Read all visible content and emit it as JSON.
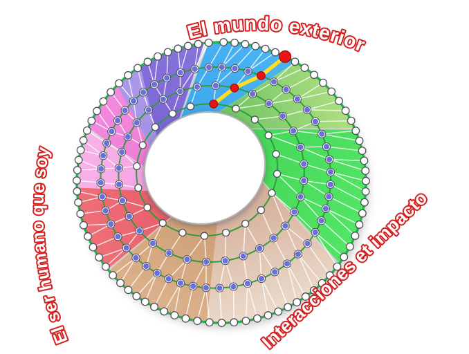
{
  "diagram": {
    "labels": {
      "top": "El mundo exterior",
      "left": "El ser humano que soy",
      "right": "Interacciones et impacto"
    },
    "label_outline_color": "#d32020",
    "label_fill_color": "#ffffff",
    "sectors": [
      {
        "name": "blue",
        "from": 355,
        "to": 391,
        "color": "#49b2f2",
        "color_inner": "#3ea9ee"
      },
      {
        "name": "green-yellow",
        "from": 31,
        "to": 68,
        "color": "#aadc80",
        "color_inner": "#74c666"
      },
      {
        "name": "green-bright",
        "from": 68,
        "to": 126,
        "color": "#52e464",
        "color_inner": "#46d95a"
      },
      {
        "name": "tan-light",
        "from": 126,
        "to": 186,
        "color": "#ecdbcc",
        "color_inner": "#d6b29c"
      },
      {
        "name": "tan-dark",
        "from": 186,
        "to": 232,
        "color": "#dcb28c",
        "color_inner": "#cfa077"
      },
      {
        "name": "red",
        "from": 232,
        "to": 268,
        "color": "#ef7078",
        "color_inner": "#e8606c"
      },
      {
        "name": "pink-light",
        "from": 268,
        "to": 293,
        "color": "#f8b3e9",
        "color_inner": "#f4a6e2"
      },
      {
        "name": "pink-med",
        "from": 293,
        "to": 314,
        "color": "#f28ade",
        "color_inner": "#ee7ed6"
      },
      {
        "name": "purple-light",
        "from": 314,
        "to": 326,
        "color": "#ab99e8",
        "color_inner": "#a391e4"
      },
      {
        "name": "purple-med",
        "from": 326,
        "to": 355,
        "color": "#8672db",
        "color_inner": "#7c66d6"
      }
    ],
    "rings": {
      "counts": [
        20,
        32,
        52,
        80
      ],
      "t": [
        0.13,
        0.4,
        0.66,
        1.0
      ],
      "ring_line_color": "#2e9c3c",
      "outer_line_color": "#21b24b",
      "mesh_line_color": "rgba(255,255,255,0.85)",
      "node_white_fill": "#ffffff",
      "node_mid_fill": "#6a70d8",
      "node_stroke": "#4e4e56"
    },
    "highlight": {
      "bearing": 27,
      "path_color": "#ffdf1f",
      "node_fill": "#e91515",
      "node_stroke": "#990000"
    },
    "hole_stroke_color": "#b3b3b3"
  }
}
